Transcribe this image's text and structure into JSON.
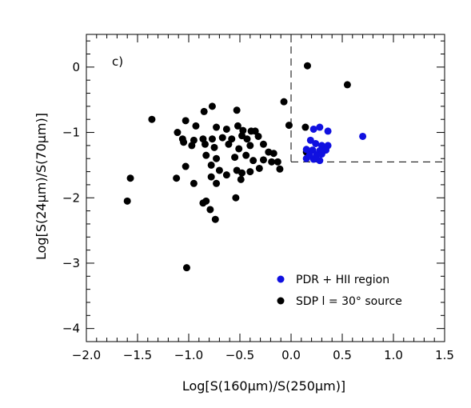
{
  "chart_data": {
    "type": "scatter",
    "panel_label": "c)",
    "xlabel": "Log[S(160μm)/S(250μm)]",
    "ylabel": "Log[S(24μm)/S(70μm)]",
    "xlim": [
      -2.0,
      1.5
    ],
    "ylim": [
      -4.2,
      0.5
    ],
    "x_ticks": [
      -2.0,
      -1.5,
      -1.0,
      -0.5,
      0.0,
      0.5,
      1.0,
      1.5
    ],
    "x_tick_labels": [
      "−2.0",
      "−1.5",
      "−1.0",
      "−0.5",
      "0.0",
      "0.5",
      "1.0",
      "1.5"
    ],
    "y_ticks": [
      0,
      -1,
      -2,
      -3,
      -4
    ],
    "y_tick_labels": [
      "0",
      "−1",
      "−2",
      "−3",
      "−4"
    ],
    "grid": false,
    "legend_position": "bottom-right",
    "region_box": {
      "x_min": 0.0,
      "y_max": -1.45
    },
    "series": [
      {
        "name": "PDR + HII region",
        "color": "#1010e0",
        "points": [
          [
            0.22,
            -0.95
          ],
          [
            0.28,
            -0.92
          ],
          [
            0.36,
            -0.98
          ],
          [
            0.7,
            -1.06
          ],
          [
            0.19,
            -1.12
          ],
          [
            0.24,
            -1.17
          ],
          [
            0.3,
            -1.2
          ],
          [
            0.36,
            -1.2
          ],
          [
            0.15,
            -1.26
          ],
          [
            0.21,
            -1.27
          ],
          [
            0.28,
            -1.28
          ],
          [
            0.34,
            -1.27
          ],
          [
            0.18,
            -1.35
          ],
          [
            0.25,
            -1.34
          ],
          [
            0.3,
            -1.33
          ],
          [
            0.15,
            -1.4
          ],
          [
            0.22,
            -1.41
          ],
          [
            0.28,
            -1.43
          ]
        ]
      },
      {
        "name": "SDP l = 30° source",
        "color": "#000000",
        "points": [
          [
            0.16,
            0.02
          ],
          [
            0.55,
            -0.27
          ],
          [
            -0.07,
            -0.53
          ],
          [
            -1.36,
            -0.8
          ],
          [
            -0.77,
            -0.6
          ],
          [
            -0.85,
            -0.68
          ],
          [
            -0.53,
            -0.66
          ],
          [
            -1.03,
            -0.82
          ],
          [
            -0.93,
            -0.9
          ],
          [
            -0.73,
            -0.92
          ],
          [
            -0.63,
            -0.95
          ],
          [
            -0.52,
            -0.9
          ],
          [
            -0.47,
            -0.97
          ],
          [
            -0.39,
            -0.98
          ],
          [
            -0.35,
            -0.98
          ],
          [
            -0.02,
            -0.89
          ],
          [
            0.14,
            -0.92
          ],
          [
            -1.11,
            -1.0
          ],
          [
            -1.06,
            -1.1
          ],
          [
            -0.95,
            -1.12
          ],
          [
            -0.86,
            -1.1
          ],
          [
            -0.77,
            -1.1
          ],
          [
            -0.67,
            -1.08
          ],
          [
            -0.58,
            -1.1
          ],
          [
            -0.48,
            -1.05
          ],
          [
            -0.43,
            -1.1
          ],
          [
            -0.32,
            -1.06
          ],
          [
            -1.05,
            -1.15
          ],
          [
            -0.97,
            -1.2
          ],
          [
            -0.84,
            -1.18
          ],
          [
            -0.75,
            -1.23
          ],
          [
            -0.61,
            -1.18
          ],
          [
            -0.51,
            -1.25
          ],
          [
            -0.4,
            -1.2
          ],
          [
            -0.27,
            -1.18
          ],
          [
            -0.22,
            -1.3
          ],
          [
            -0.17,
            -1.32
          ],
          [
            0.15,
            -1.3
          ],
          [
            -0.83,
            -1.35
          ],
          [
            -0.73,
            -1.4
          ],
          [
            -0.55,
            -1.38
          ],
          [
            -0.44,
            -1.35
          ],
          [
            -0.37,
            -1.43
          ],
          [
            -0.27,
            -1.42
          ],
          [
            -0.19,
            -1.45
          ],
          [
            -0.13,
            -1.45
          ],
          [
            -0.78,
            -1.5
          ],
          [
            -1.03,
            -1.52
          ],
          [
            -0.7,
            -1.58
          ],
          [
            -0.53,
            -1.58
          ],
          [
            -0.48,
            -1.62
          ],
          [
            -0.31,
            -1.55
          ],
          [
            -0.11,
            -1.56
          ],
          [
            -1.12,
            -1.7
          ],
          [
            -1.57,
            -1.7
          ],
          [
            -0.78,
            -1.68
          ],
          [
            -0.63,
            -1.65
          ],
          [
            -0.49,
            -1.72
          ],
          [
            -0.4,
            -1.6
          ],
          [
            -0.95,
            -1.78
          ],
          [
            -0.73,
            -1.78
          ],
          [
            -0.54,
            -2.0
          ],
          [
            -0.83,
            -2.05
          ],
          [
            -0.86,
            -2.08
          ],
          [
            -1.6,
            -2.05
          ],
          [
            -0.79,
            -2.18
          ],
          [
            -0.74,
            -2.33
          ],
          [
            -1.02,
            -3.07
          ]
        ]
      }
    ]
  }
}
